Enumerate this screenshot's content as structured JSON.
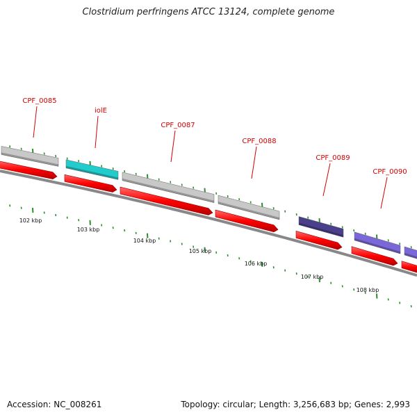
{
  "title": "Clostridium perfringens ATCC 13124, complete genome",
  "accession": "Accession: NC_008261",
  "topology": "Topology: circular; Length: 3,256,683 bp; Genes: 2,993",
  "colors": {
    "backbone": "#888888",
    "gene_label": "#d00000",
    "cds_arrow": "#ff1a1a",
    "tick": "#2e8b2e"
  },
  "genes": [
    {
      "label": "",
      "color": "#c8c8c8"
    },
    {
      "label": "CPF_0085",
      "color": "#c8c8c8"
    },
    {
      "label": "iolE",
      "color": "#22cccc"
    },
    {
      "label": "CPF_0087",
      "color": "#c8c8c8"
    },
    {
      "label": "CPF_0088",
      "color": "#c8c8c8"
    },
    {
      "label": "CPF_0089",
      "color": "#4a3f8a"
    },
    {
      "label": "CPF_0090",
      "color": "#7b68d8"
    },
    {
      "label": "",
      "color": "#7b68d8"
    }
  ],
  "scale_labels": [
    "102 kbp",
    "103 kbp",
    "104 kbp",
    "105 kbp",
    "106 kbp",
    "107 kbp",
    "108 kbp"
  ]
}
